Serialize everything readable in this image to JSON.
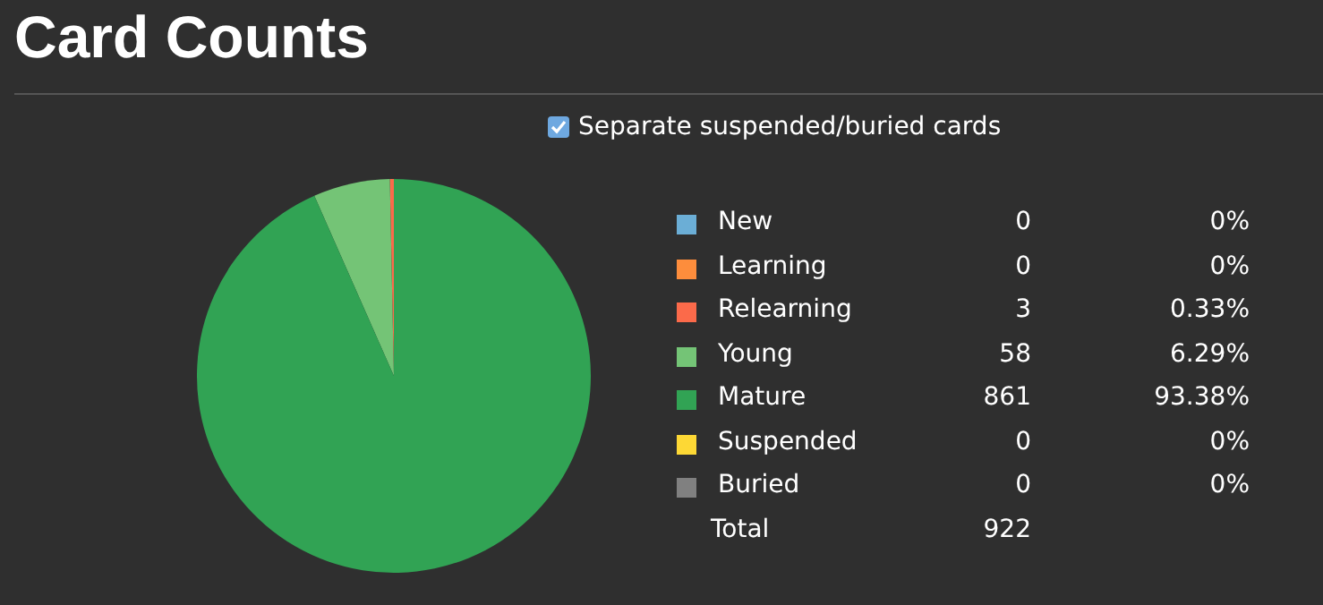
{
  "chart_data": {
    "type": "pie",
    "title": "Card Counts",
    "categories": [
      "New",
      "Learning",
      "Relearning",
      "Young",
      "Mature",
      "Suspended",
      "Buried"
    ],
    "values": [
      0,
      0,
      3,
      58,
      861,
      0,
      0
    ],
    "colors": [
      "#6baed6",
      "#fd8d3c",
      "#fb6a4a",
      "#74c476",
      "#31a354",
      "#fdd835",
      "#808080"
    ],
    "value_labels": [
      "0",
      "0",
      "3",
      "58",
      "861",
      "0",
      "0"
    ],
    "totals": [
      "922"
    ],
    "annotations": [
      "Separate suspended/buried cards",
      "Total",
      "0%",
      "0%",
      "0.33%",
      "6.29%",
      "93.38%",
      "0%",
      "0%"
    ],
    "legend": "right"
  }
}
